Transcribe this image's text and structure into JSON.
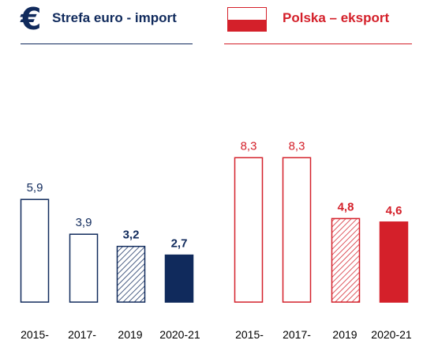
{
  "legend": {
    "euro_title": "Strefa euro - import",
    "poland_title": "Polska – eksport"
  },
  "colors": {
    "euro_navy": "#102a5c",
    "poland_red": "#d4202a"
  },
  "chart_data": [
    {
      "type": "bar",
      "title": "Strefa euro - import",
      "categories": [
        "2015-",
        "2017-",
        "2019",
        "2020-21"
      ],
      "values": [
        5.9,
        3.9,
        3.2,
        2.7
      ],
      "value_labels": [
        "5,9",
        "3,9",
        "3,2",
        "2,7"
      ],
      "bar_styles": [
        "outline",
        "outline",
        "hatched",
        "solid"
      ],
      "bold_labels": [
        false,
        false,
        true,
        true
      ],
      "color": "#102a5c",
      "ylim": [
        0,
        9
      ],
      "grid": false
    },
    {
      "type": "bar",
      "title": "Polska – eksport",
      "categories": [
        "2015-",
        "2017-",
        "2019",
        "2020-21"
      ],
      "values": [
        8.3,
        8.3,
        4.8,
        4.6
      ],
      "value_labels": [
        "8,3",
        "8,3",
        "4,8",
        "4,6"
      ],
      "bar_styles": [
        "outline",
        "outline",
        "hatched",
        "solid"
      ],
      "bold_labels": [
        false,
        false,
        true,
        true
      ],
      "color": "#d4202a",
      "ylim": [
        0,
        9
      ],
      "grid": false
    }
  ]
}
